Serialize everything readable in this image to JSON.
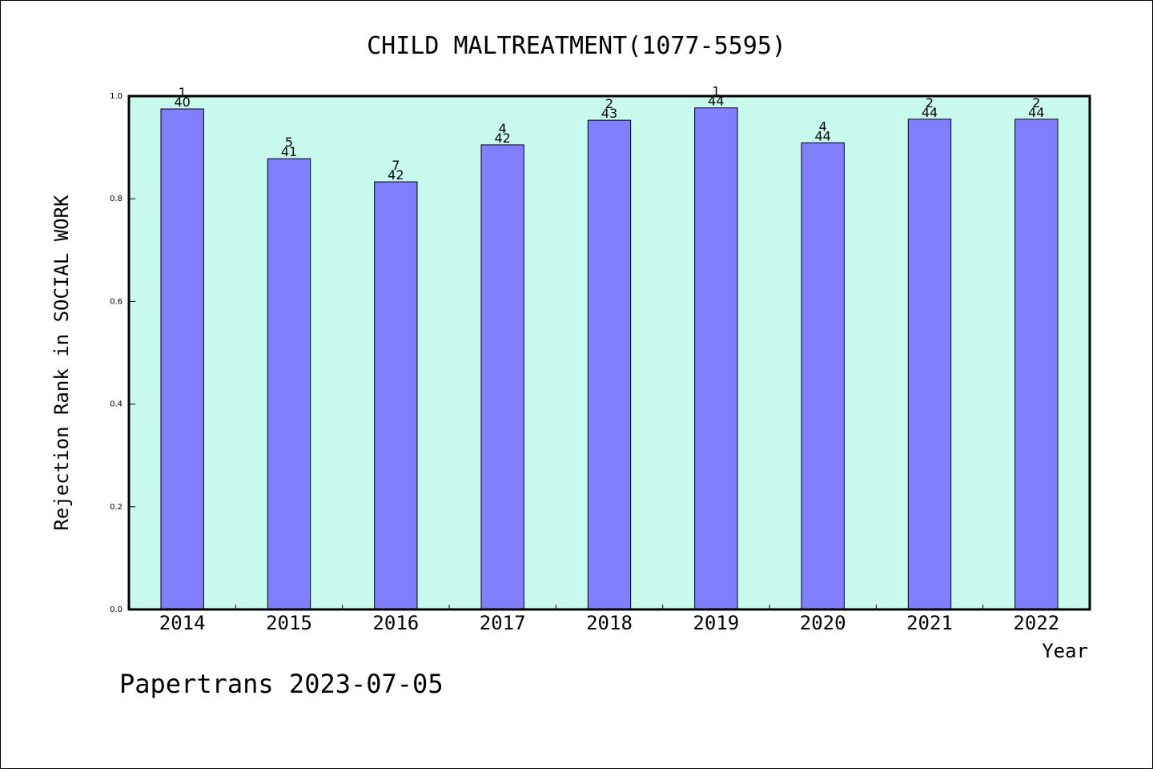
{
  "chart_data": {
    "type": "bar",
    "title": "CHILD MALTREATMENT(1077-5595)",
    "xlabel": "Year",
    "ylabel": "Rejection Rank in SOCIAL WORK",
    "ylim": [
      0,
      1.0
    ],
    "yticks": [
      "0.0",
      "0.2",
      "0.4",
      "0.6",
      "0.8",
      "1.0"
    ],
    "categories": [
      "2014",
      "2015",
      "2016",
      "2017",
      "2018",
      "2019",
      "2020",
      "2021",
      "2022"
    ],
    "values": [
      0.975,
      0.878,
      0.833,
      0.905,
      0.953,
      0.977,
      0.909,
      0.955,
      0.955
    ],
    "rank_labels": [
      "1",
      "5",
      "7",
      "4",
      "2",
      "1",
      "4",
      "2",
      "2"
    ],
    "count_labels": [
      "40",
      "41",
      "42",
      "42",
      "43",
      "44",
      "44",
      "44",
      "44"
    ],
    "grid": false,
    "colors": {
      "plot_background": "#c8fbee",
      "bar_fill": "#8080ff",
      "bar_stroke": "#000000"
    }
  },
  "footer": {
    "text": "Papertrans 2023-07-05"
  }
}
